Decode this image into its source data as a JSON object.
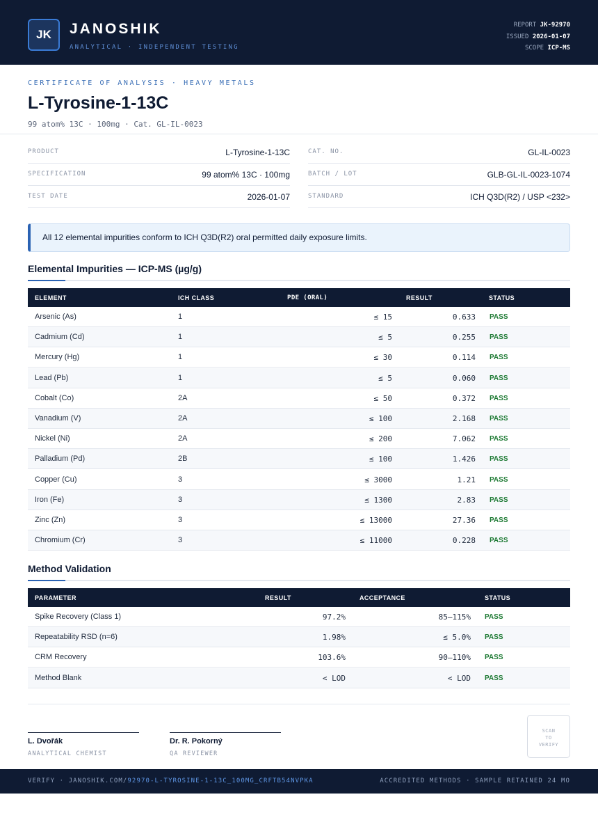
{
  "header": {
    "logo_initials": "JK",
    "brand": "JANOSHIK",
    "tagline": "ANALYTICAL · INDEPENDENT TESTING",
    "report_label": "REPORT",
    "report_value": "JK-92970",
    "issued_label": "ISSUED",
    "issued_value": "2026-01-07",
    "scope_label": "SCOPE",
    "scope_value": "ICP-MS"
  },
  "title_block": {
    "kicker": "CERTIFICATE OF ANALYSIS · HEAVY METALS",
    "title": "L-Tyrosine-1-13C",
    "subtitle": "99 atom% 13C · 100mg  ·  Cat. GL-IL-0023"
  },
  "info": {
    "left": [
      {
        "label": "PRODUCT",
        "value": "L-Tyrosine-1-13C"
      },
      {
        "label": "SPECIFICATION",
        "value": "99 atom% 13C · 100mg"
      },
      {
        "label": "TEST DATE",
        "value": "2026-01-07"
      }
    ],
    "right": [
      {
        "label": "CAT. NO.",
        "value": "GL-IL-0023"
      },
      {
        "label": "BATCH / LOT",
        "value": "GLB-GL-IL-0023-1074"
      },
      {
        "label": "STANDARD",
        "value": "ICH Q3D(R2) / USP <232>"
      }
    ]
  },
  "notice": "All 12 elemental impurities conform to ICH Q3D(R2) oral permitted daily exposure limits.",
  "impurities": {
    "heading": "Elemental Impurities — ICP-MS (µg/g)",
    "columns": [
      "ELEMENT",
      "ICH CLASS",
      "PDE (ORAL)",
      "RESULT",
      "STATUS"
    ],
    "rows": [
      {
        "element": "Arsenic (As)",
        "class": "1",
        "pde": "≤ 15",
        "result": "0.633",
        "status": "PASS"
      },
      {
        "element": "Cadmium (Cd)",
        "class": "1",
        "pde": "≤ 5",
        "result": "0.255",
        "status": "PASS"
      },
      {
        "element": "Mercury (Hg)",
        "class": "1",
        "pde": "≤ 30",
        "result": "0.114",
        "status": "PASS"
      },
      {
        "element": "Lead (Pb)",
        "class": "1",
        "pde": "≤ 5",
        "result": "0.060",
        "status": "PASS"
      },
      {
        "element": "Cobalt (Co)",
        "class": "2A",
        "pde": "≤ 50",
        "result": "0.372",
        "status": "PASS"
      },
      {
        "element": "Vanadium (V)",
        "class": "2A",
        "pde": "≤ 100",
        "result": "2.168",
        "status": "PASS"
      },
      {
        "element": "Nickel (Ni)",
        "class": "2A",
        "pde": "≤ 200",
        "result": "7.062",
        "status": "PASS"
      },
      {
        "element": "Palladium (Pd)",
        "class": "2B",
        "pde": "≤ 100",
        "result": "1.426",
        "status": "PASS"
      },
      {
        "element": "Copper (Cu)",
        "class": "3",
        "pde": "≤ 3000",
        "result": "1.21",
        "status": "PASS"
      },
      {
        "element": "Iron (Fe)",
        "class": "3",
        "pde": "≤ 1300",
        "result": "2.83",
        "status": "PASS"
      },
      {
        "element": "Zinc (Zn)",
        "class": "3",
        "pde": "≤ 13000",
        "result": "27.36",
        "status": "PASS"
      },
      {
        "element": "Chromium (Cr)",
        "class": "3",
        "pde": "≤ 11000",
        "result": "0.228",
        "status": "PASS"
      }
    ]
  },
  "validation": {
    "heading": "Method Validation",
    "columns": [
      "PARAMETER",
      "RESULT",
      "ACCEPTANCE",
      "STATUS"
    ],
    "rows": [
      {
        "parameter": "Spike Recovery (Class 1)",
        "result": "97.2%",
        "acceptance": "85–115%",
        "status": "PASS"
      },
      {
        "parameter": "Repeatability RSD (n=6)",
        "result": "1.98%",
        "acceptance": "≤ 5.0%",
        "status": "PASS"
      },
      {
        "parameter": "CRM Recovery",
        "result": "103.6%",
        "acceptance": "90–110%",
        "status": "PASS"
      },
      {
        "parameter": "Method Blank",
        "result": "< LOD",
        "acceptance": "< LOD",
        "status": "PASS"
      }
    ]
  },
  "signatures": [
    {
      "name": "L. Dvořák",
      "role": "ANALYTICAL CHEMIST"
    },
    {
      "name": "Dr. R. Pokorný",
      "role": "QA REVIEWER"
    }
  ],
  "scan": {
    "line1": "SCAN",
    "line2": "TO",
    "line3": "VERIFY"
  },
  "footer": {
    "verify_prefix": "VERIFY · JANOSHIK.COM/",
    "verify_link": "92970-L-TYROSINE-1-13C_100MG_CRFTB54NVPKA",
    "right": "ACCREDITED METHODS · SAMPLE RETAINED 24 MO"
  },
  "colors": {
    "navy": "#0f1b33",
    "accent_blue": "#2a62b3",
    "pass_green": "#1e7a34",
    "notice_bg": "#eaf3fc"
  }
}
